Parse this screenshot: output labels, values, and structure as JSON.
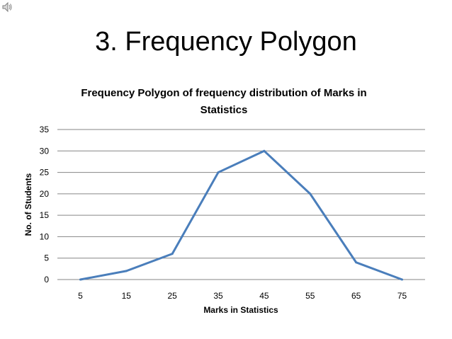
{
  "slide": {
    "title": "3. Frequency Polygon",
    "speaker_icon": "speaker-icon"
  },
  "chart_data": {
    "type": "line",
    "title_lines": [
      "Frequency Polygon of frequency distribution of Marks in",
      "Statistics"
    ],
    "xlabel": "Marks in Statistics",
    "ylabel": "No. of Students",
    "categories": [
      "5",
      "15",
      "25",
      "35",
      "45",
      "55",
      "65",
      "75"
    ],
    "series": [
      {
        "values": [
          0,
          2,
          6,
          25,
          30,
          20,
          4,
          0
        ]
      }
    ],
    "ylim": [
      0,
      35
    ],
    "yticks": [
      "0",
      "5",
      "10",
      "15",
      "20",
      "25",
      "30",
      "35"
    ],
    "grid": true,
    "legend": "none",
    "line_color": "#4a7ebb",
    "grid_color": "#868686"
  }
}
